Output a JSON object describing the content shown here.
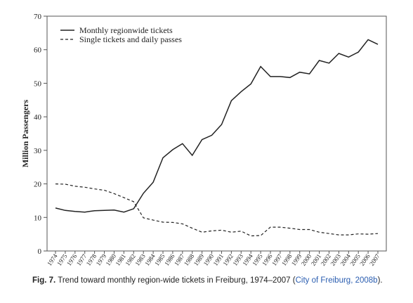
{
  "chart_data": {
    "type": "line",
    "title": "",
    "xlabel": "",
    "ylabel": "Million Passengers",
    "ylim": [
      0,
      70
    ],
    "yticks": [
      0,
      10,
      20,
      30,
      40,
      50,
      60,
      70
    ],
    "grid": false,
    "legend_position": "top-left",
    "x": [
      "1974",
      "1975",
      "1976",
      "1977",
      "1978",
      "1979",
      "1980",
      "1981",
      "1982",
      "1983",
      "1984",
      "1985",
      "1986",
      "1987",
      "1988",
      "1989",
      "1990",
      "1991",
      "1992",
      "1993",
      "1994",
      "1995",
      "1996",
      "1997",
      "1998",
      "1999",
      "2000",
      "2001",
      "2002",
      "2003",
      "2004",
      "2005",
      "2006",
      "2007"
    ],
    "series": [
      {
        "name": "Monthly regionwide tickets",
        "style": "solid",
        "values": [
          12.8,
          12.1,
          11.8,
          11.6,
          12.0,
          12.1,
          12.2,
          11.6,
          12.6,
          17.2,
          20.5,
          27.8,
          30.2,
          32.0,
          28.5,
          33.2,
          34.5,
          37.7,
          44.8,
          47.5,
          49.8,
          55.0,
          52.0,
          52.0,
          51.7,
          53.3,
          52.8,
          56.8,
          56.0,
          58.9,
          57.8,
          59.3,
          63.0,
          61.6
        ]
      },
      {
        "name": "Single tickets and daily passes",
        "style": "dashed",
        "values": [
          20.0,
          19.9,
          19.3,
          19.0,
          18.5,
          18.1,
          17.1,
          15.9,
          14.7,
          9.9,
          9.2,
          8.6,
          8.5,
          8.1,
          6.8,
          5.6,
          6.0,
          6.2,
          5.6,
          5.9,
          4.5,
          4.6,
          7.1,
          7.1,
          6.8,
          6.4,
          6.4,
          5.6,
          5.2,
          4.8,
          4.8,
          5.1,
          5.0,
          5.2
        ]
      }
    ]
  },
  "caption": {
    "label": "Fig. 7.",
    "text": "Trend toward monthly region-wide tickets in Freiburg, 1974–2007 (",
    "reference": "City of Freiburg, 2008b",
    "end": ")."
  }
}
